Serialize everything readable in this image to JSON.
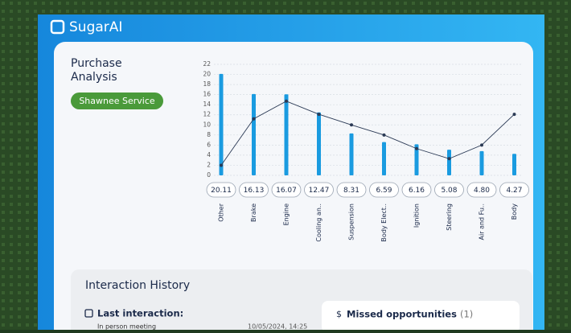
{
  "brand": "SugarAI",
  "panel": {
    "title": "Purchase Analysis",
    "badge": "Shawnee Service"
  },
  "chart_data": {
    "type": "bar-line",
    "categories": [
      "Other",
      "Brake",
      "Engine",
      "Cooling an..",
      "Suspension",
      "Body Elect..",
      "Ignition",
      "Steering",
      "Air and Fu..",
      "Body"
    ],
    "values": [
      20.11,
      16.13,
      16.07,
      12.47,
      8.31,
      6.59,
      6.16,
      5.08,
      4.8,
      4.27
    ],
    "value_labels": [
      "20.11",
      "16.13",
      "16.07",
      "12.47",
      "8.31",
      "6.59",
      "6.16",
      "5.08",
      "4.80",
      "4.27"
    ],
    "color": "#1a9be0",
    "line": {
      "color": "#2b3a55",
      "values": [
        2,
        11.2,
        14.7,
        12.1,
        10,
        8,
        5.3,
        3.3,
        6,
        12.1
      ]
    },
    "ylim": [
      0,
      22
    ],
    "yticks": [
      0,
      2,
      4,
      6,
      8,
      10,
      12,
      14,
      16,
      18,
      20,
      22
    ],
    "grid": true
  },
  "interaction": {
    "title": "Interaction History",
    "last_label": "Last interaction:",
    "last_type": "In person meeting",
    "last_date": "10/05/2024, 14:25",
    "missed_title": "Missed opportunities",
    "missed_count": "(1)"
  }
}
